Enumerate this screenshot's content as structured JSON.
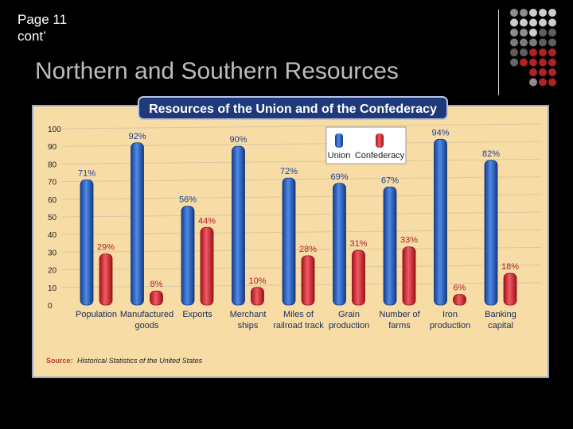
{
  "page_label": {
    "line1": "Page 11",
    "line2": "cont’"
  },
  "slide_title": "Northern and Southern Resources",
  "decor": {
    "dot_colors": [
      "#8c8c8c",
      "#cccccc",
      "#7a7a7a",
      "#5e5e5e",
      "#b22222",
      "#666666"
    ]
  },
  "chart_data": {
    "type": "bar",
    "title": "Resources of the Union and of the Confederacy",
    "categories": [
      [
        "Population"
      ],
      [
        "Manufactured",
        "goods"
      ],
      [
        "Exports"
      ],
      [
        "Merchant",
        "ships"
      ],
      [
        "Miles of",
        "railroad track"
      ],
      [
        "Grain",
        "production"
      ],
      [
        "Number of",
        "farms"
      ],
      [
        "Iron",
        "production"
      ],
      [
        "Banking",
        "capital"
      ]
    ],
    "series": [
      {
        "name": "Union",
        "color": "#2a62c4",
        "values": [
          71,
          92,
          56,
          90,
          72,
          69,
          67,
          94,
          82
        ],
        "labels": [
          "71%",
          "92%",
          "56%",
          "90%",
          "72%",
          "69%",
          "67%",
          "94%",
          "82%"
        ]
      },
      {
        "name": "Confederacy",
        "color": "#e0303a",
        "values": [
          29,
          8,
          44,
          10,
          28,
          31,
          33,
          6,
          18
        ],
        "labels": [
          "29%",
          "8%",
          "44%",
          "10%",
          "28%",
          "31%",
          "33%",
          "6%",
          "18%"
        ]
      }
    ],
    "ylim": [
      0,
      100
    ],
    "yticks": [
      0,
      10,
      20,
      30,
      40,
      50,
      60,
      70,
      80,
      90,
      100
    ],
    "legend_position": "top-center",
    "grid": true,
    "source_label": "Source:",
    "source_text": "Historical Statistics of the United States",
    "colors": {
      "panel_bg": "#f7dca6",
      "title_bg": "#1f3a7a",
      "title_text": "#ffffff"
    }
  }
}
